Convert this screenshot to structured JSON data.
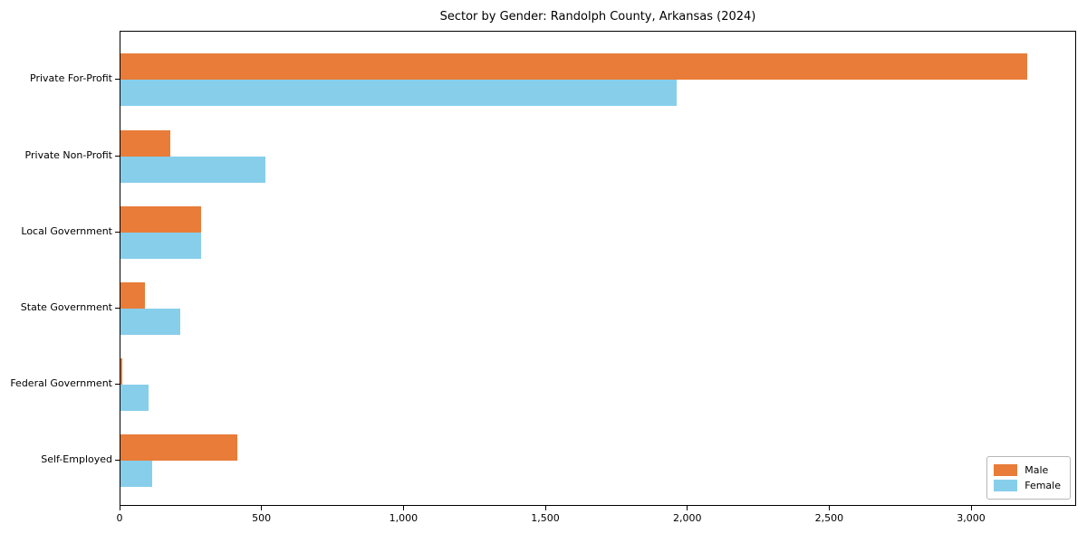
{
  "chart_data": {
    "type": "bar",
    "orientation": "horizontal",
    "title": "Sector by Gender: Randolph County, Arkansas (2024)",
    "categories": [
      "Private For-Profit",
      "Private Non-Profit",
      "Local Government",
      "State Government",
      "Federal Government",
      "Self-Employed"
    ],
    "series": [
      {
        "name": "Male",
        "color": "#E87C38",
        "values": [
          3200,
          175,
          285,
          85,
          5,
          413
        ]
      },
      {
        "name": "Female",
        "color": "#87CEEB",
        "values": [
          1963,
          510,
          285,
          210,
          100,
          113
        ]
      }
    ],
    "xlabel": "",
    "ylabel": "",
    "xlim": [
      0,
      3370
    ],
    "x_tick_values": [
      0,
      500,
      1000,
      1500,
      2000,
      2500,
      3000
    ],
    "x_tick_labels": [
      "0",
      "500",
      "1,000",
      "1,500",
      "2,000",
      "2,500",
      "3,000"
    ],
    "grid": false,
    "legend": {
      "position": "lower-right",
      "entries": [
        "Male",
        "Female"
      ]
    },
    "colors": {
      "spine": "#000000",
      "background": "#ffffff",
      "text": "#000000"
    }
  }
}
